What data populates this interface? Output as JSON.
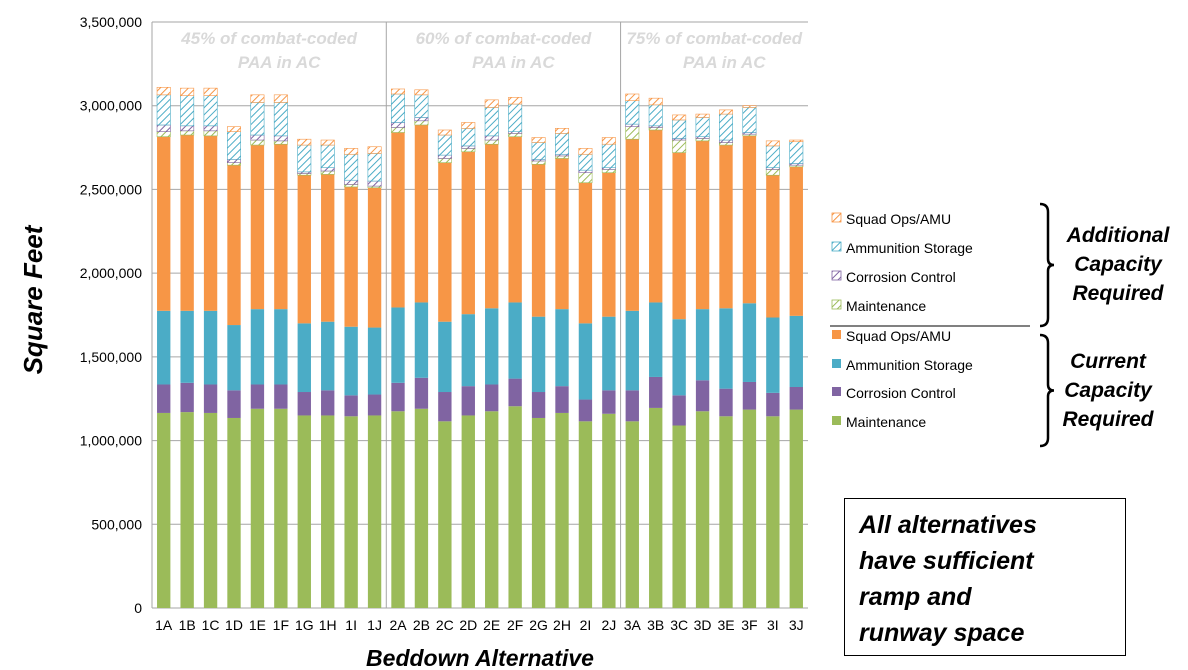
{
  "chart_data": {
    "type": "bar",
    "stacked": true,
    "title": "",
    "xlabel": "Beddown Alternative",
    "ylabel": "Square Feet",
    "ylim": [
      0,
      3500000
    ],
    "yticks": [
      0,
      500000,
      1000000,
      1500000,
      2000000,
      2500000,
      3000000,
      3500000
    ],
    "ytick_labels": [
      "0",
      "500,000",
      "1,000,000",
      "1,500,000",
      "2,000,000",
      "2,500,000",
      "3,000,000",
      "3,500,000"
    ],
    "grid": true,
    "categories": [
      "1A",
      "1B",
      "1C",
      "1D",
      "1E",
      "1F",
      "1G",
      "1H",
      "1I",
      "1J",
      "2A",
      "2B",
      "2C",
      "2D",
      "2E",
      "2F",
      "2G",
      "2H",
      "2I",
      "2J",
      "3A",
      "3B",
      "3C",
      "3D",
      "3E",
      "3F",
      "3I",
      "3J"
    ],
    "category_groups": [
      {
        "label": "45% of combat-coded\nPAA in AC",
        "categories": [
          "1A",
          "1B",
          "1C",
          "1D",
          "1E",
          "1F",
          "1G",
          "1H",
          "1I",
          "1J"
        ]
      },
      {
        "label": "60% of combat-coded\nPAA in AC",
        "categories": [
          "2A",
          "2B",
          "2C",
          "2D",
          "2E",
          "2F",
          "2G",
          "2H",
          "2I",
          "2J"
        ]
      },
      {
        "label": "75% of combat-coded\nPAA in AC",
        "categories": [
          "3A",
          "3B",
          "3C",
          "3D",
          "3E",
          "3F",
          "3I",
          "3J"
        ]
      }
    ],
    "series": [
      {
        "name": "Maintenance",
        "capacity": "current",
        "color": "#9bbb59",
        "values": [
          1165000,
          1170000,
          1165000,
          1135000,
          1190000,
          1190000,
          1150000,
          1150000,
          1145000,
          1150000,
          1175000,
          1190000,
          1115000,
          1150000,
          1175000,
          1205000,
          1135000,
          1165000,
          1115000,
          1160000,
          1115000,
          1195000,
          1090000,
          1175000,
          1145000,
          1185000,
          1145000,
          1185000
        ]
      },
      {
        "name": "Corrosion Control",
        "capacity": "current",
        "color": "#8064a2",
        "values": [
          170000,
          175000,
          170000,
          165000,
          145000,
          145000,
          140000,
          150000,
          125000,
          125000,
          170000,
          185000,
          175000,
          175000,
          160000,
          165000,
          155000,
          160000,
          130000,
          140000,
          185000,
          185000,
          180000,
          185000,
          165000,
          165000,
          140000,
          135000
        ]
      },
      {
        "name": "Ammunition Storage",
        "capacity": "current",
        "color": "#4bacc6",
        "values": [
          440000,
          430000,
          440000,
          390000,
          450000,
          450000,
          410000,
          410000,
          410000,
          400000,
          450000,
          450000,
          420000,
          430000,
          455000,
          455000,
          450000,
          460000,
          455000,
          440000,
          475000,
          445000,
          455000,
          425000,
          480000,
          470000,
          450000,
          425000
        ]
      },
      {
        "name": "Squad Ops/AMU",
        "capacity": "current",
        "color": "#f79646",
        "values": [
          1040000,
          1050000,
          1045000,
          955000,
          980000,
          985000,
          885000,
          880000,
          835000,
          835000,
          1045000,
          1060000,
          950000,
          970000,
          980000,
          990000,
          910000,
          900000,
          840000,
          860000,
          1025000,
          1030000,
          995000,
          1005000,
          975000,
          1000000,
          850000,
          890000
        ]
      },
      {
        "name": "Maintenance",
        "capacity": "additional",
        "color": "#9bbb59",
        "values": [
          30000,
          25000,
          30000,
          15000,
          30000,
          20000,
          10000,
          20000,
          15000,
          10000,
          30000,
          25000,
          25000,
          20000,
          25000,
          20000,
          20000,
          15000,
          60000,
          20000,
          75000,
          15000,
          75000,
          15000,
          15000,
          10000,
          35000,
          10000
        ]
      },
      {
        "name": "Corrosion Control",
        "capacity": "additional",
        "color": "#8064a2",
        "values": [
          40000,
          30000,
          30000,
          20000,
          30000,
          30000,
          10000,
          20000,
          25000,
          30000,
          30000,
          20000,
          20000,
          15000,
          25000,
          10000,
          10000,
          10000,
          15000,
          10000,
          15000,
          10000,
          10000,
          10000,
          15000,
          10000,
          10000,
          10000
        ]
      },
      {
        "name": "Ammunition Storage",
        "capacity": "additional",
        "color": "#4bacc6",
        "values": [
          180000,
          180000,
          180000,
          165000,
          195000,
          200000,
          160000,
          135000,
          155000,
          165000,
          170000,
          135000,
          120000,
          105000,
          170000,
          165000,
          100000,
          125000,
          95000,
          140000,
          140000,
          125000,
          110000,
          115000,
          155000,
          150000,
          130000,
          130000
        ]
      },
      {
        "name": "Squad Ops/AMU",
        "capacity": "additional",
        "color": "#f79646",
        "values": [
          45000,
          45000,
          45000,
          30000,
          45000,
          45000,
          35000,
          30000,
          35000,
          40000,
          30000,
          30000,
          30000,
          35000,
          45000,
          40000,
          30000,
          30000,
          35000,
          40000,
          40000,
          40000,
          30000,
          20000,
          25000,
          10000,
          30000,
          10000
        ]
      }
    ],
    "legend": {
      "position": "right",
      "additional_entries": [
        "Squad Ops/AMU",
        "Ammunition Storage",
        "Corrosion Control",
        "Maintenance"
      ],
      "current_entries": [
        "Squad Ops/AMU",
        "Ammunition Storage",
        "Corrosion Control",
        "Maintenance"
      ],
      "additional_label": "Additional\nCapacity\nRequired",
      "current_label": "Current\nCapacity\nRequired"
    }
  },
  "note": "All alternatives\nhave sufficient\nramp and\nrunway space"
}
